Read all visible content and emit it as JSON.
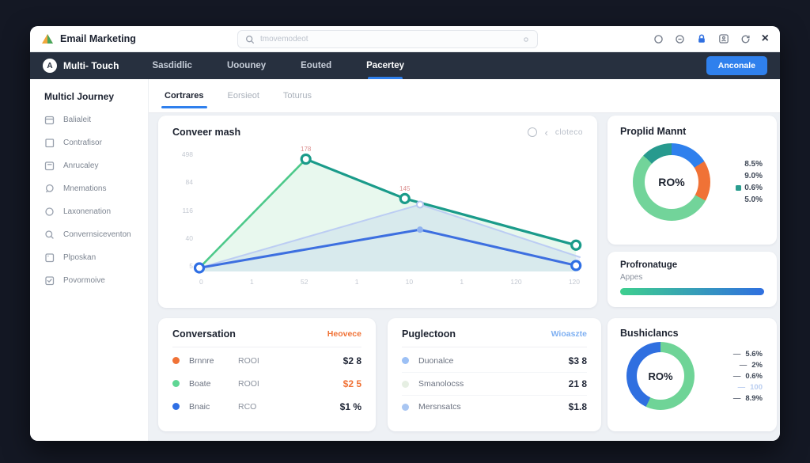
{
  "topbar": {
    "app_title": "Email Marketing",
    "search_placeholder": "tmovemodeot"
  },
  "navbar": {
    "brand_initial": "A",
    "brand": "Multi- Touch",
    "items": [
      {
        "label": "Sasdidlic"
      },
      {
        "label": "Uoouney"
      },
      {
        "label": "Eouted"
      },
      {
        "label": "Pacertey"
      }
    ],
    "active": "Pacertey",
    "action_label": "Anconale"
  },
  "sidebar": {
    "heading": "Multicl Journey",
    "items": [
      {
        "label": "Balialeit"
      },
      {
        "label": "Contrafisor"
      },
      {
        "label": "Anrucaley"
      },
      {
        "label": "Mnemations"
      },
      {
        "label": "Laxonenation"
      },
      {
        "label": "Convernsiceventon"
      },
      {
        "label": "Plposkan"
      },
      {
        "label": "Povormoive"
      }
    ]
  },
  "tabs": {
    "items": [
      {
        "label": "Cortrares"
      },
      {
        "label": "Eorsieot"
      },
      {
        "label": "Toturus"
      }
    ],
    "active": "Cortrares"
  },
  "chart_card": {
    "title": "Conveer mash",
    "pager_label": "cloteco"
  },
  "roi_card": {
    "title": "Proplid Mannt",
    "center_label": "RO%",
    "marker_color": "#2a9d8f",
    "legend": [
      {
        "value": "8.5%"
      },
      {
        "value": "9.0%"
      },
      {
        "value": "0.6%"
      },
      {
        "value": "5.0%"
      }
    ]
  },
  "progress_card": {
    "title": "Profronatuge",
    "subtitle": "Appes",
    "gradient": [
      "#3ecf8e",
      "#2f6fe0"
    ]
  },
  "conversion_card": {
    "title": "Conversation",
    "link_label": "Heovece",
    "rows": [
      {
        "dot": "#f07236",
        "name": "Brnnre",
        "metric": "ROOI",
        "value": "$2 8",
        "value_color": "#222838"
      },
      {
        "dot": "#5fd694",
        "name": "Boate",
        "metric": "ROOI",
        "value": "$2 5",
        "value_color": "#f07236"
      },
      {
        "dot": "#2f6fe4",
        "name": "Bnaic",
        "metric": "RCO",
        "value": "$1 %",
        "value_color": "#222838"
      }
    ]
  },
  "projection_card": {
    "title": "Puglectoon",
    "link_label": "Wioaszte",
    "rows": [
      {
        "dot": "#9cc0f5",
        "name": "Duonalce",
        "value": "$3 8"
      },
      {
        "dot": "#e6efe3",
        "name": "Smanolocss",
        "value": "21 8"
      },
      {
        "dot": "#a9c6f2",
        "name": "Mersnsatcs",
        "value": "$1.8"
      }
    ]
  },
  "balance_card": {
    "title": "Bushiclancs",
    "center_label": "RO%",
    "dash_glyph": "—",
    "legend": [
      {
        "value": "5.6%"
      },
      {
        "value": "2%"
      },
      {
        "value": "0.6%"
      },
      {
        "value": "100",
        "muted": true
      },
      {
        "value": "8.9%"
      }
    ]
  },
  "chart_data": [
    {
      "type": "line",
      "title": "Conveer mash",
      "x_ticks": [
        "0",
        "1",
        "52",
        "1",
        "10",
        "1",
        "120",
        "120"
      ],
      "y_ticks": [
        "498",
        "84",
        "116",
        "40",
        "5"
      ],
      "grid": false,
      "point_labels": [
        {
          "text": "178",
          "x": 28,
          "y": 94
        },
        {
          "text": "145",
          "x": 54,
          "y": 61
        }
      ],
      "series": [
        {
          "name": "ghost-blue",
          "color": "#bccdf3",
          "width": 2,
          "points": [
            [
              0,
              3
            ],
            [
              58,
              56
            ],
            [
              100,
              12
            ]
          ]
        },
        {
          "name": "green-rise",
          "color": "#4dc98a",
          "width": 2.6,
          "points": [
            [
              0,
              3
            ],
            [
              28,
              94
            ]
          ]
        },
        {
          "name": "teal-fall",
          "color": "#1a9b8a",
          "width": 3.2,
          "points": [
            [
              28,
              94
            ],
            [
              54,
              61
            ],
            [
              99,
              22
            ]
          ]
        },
        {
          "name": "blue",
          "color": "#3d6fe0",
          "width": 3,
          "points": [
            [
              0,
              3
            ],
            [
              58,
              35
            ],
            [
              99,
              5
            ]
          ]
        }
      ],
      "areas": [
        {
          "name": "green-area",
          "fill": "rgba(109,213,152,0.16)",
          "points": [
            [
              0,
              3
            ],
            [
              28,
              94
            ],
            [
              54,
              61
            ],
            [
              99,
              22
            ]
          ]
        },
        {
          "name": "blue-area",
          "fill": "rgba(121,152,235,0.14)",
          "points": [
            [
              0,
              3
            ],
            [
              58,
              56
            ],
            [
              100,
              12
            ]
          ]
        }
      ],
      "markers": [
        {
          "x": 28,
          "y": 94,
          "type": "ring",
          "color": "#1a9b8a"
        },
        {
          "x": 54,
          "y": 61,
          "type": "ring",
          "color": "#1a9b8a"
        },
        {
          "x": 99,
          "y": 22,
          "type": "ring",
          "color": "#1a9b8a"
        },
        {
          "x": 0,
          "y": 3,
          "type": "ring",
          "color": "#2f6fe4"
        },
        {
          "x": 99,
          "y": 5,
          "type": "ring",
          "color": "#2f6fe4"
        },
        {
          "x": 58,
          "y": 56,
          "type": "ring-light",
          "color": "#b3c4ee"
        },
        {
          "x": 58,
          "y": 35,
          "type": "dot",
          "color": "#8fb2ef"
        }
      ]
    },
    {
      "type": "pie",
      "title": "Proplid Mannt",
      "center_label": "RO%",
      "segments": [
        {
          "color": "#2f80ed",
          "value": 16
        },
        {
          "color": "#f07236",
          "value": 17
        },
        {
          "color": "#72d49a",
          "value": 54
        },
        {
          "color": "#279a8e",
          "value": 13
        }
      ],
      "legend": [
        "8.5%",
        "9.0%",
        "0.6%",
        "5.0%"
      ]
    },
    {
      "type": "pie",
      "title": "Bushiclancs",
      "center_label": "RO%",
      "segments": [
        {
          "color": "#6fd497",
          "value": 57
        },
        {
          "color": "#2f6fe0",
          "value": 43
        }
      ],
      "legend": [
        "5.6%",
        "2%",
        "0.6%",
        "100",
        "8.9%"
      ]
    }
  ]
}
